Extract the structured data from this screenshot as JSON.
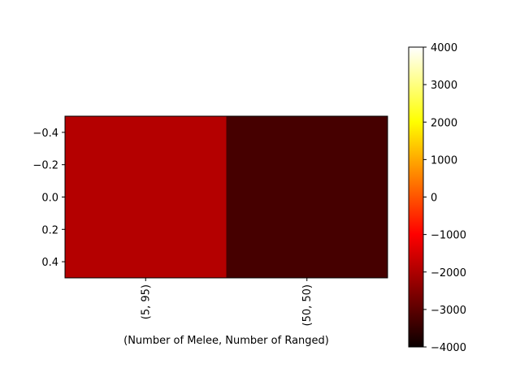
{
  "chart_data": {
    "type": "heatmap",
    "title": "",
    "xlabel": "(Number of Melee, Number of Ranged)",
    "ylabel": "",
    "x_categories": [
      "(5, 95)",
      "(50, 50)"
    ],
    "y_range": [
      0.5,
      -0.5
    ],
    "y_ticks": [
      "−0.4",
      "−0.2",
      "0.0",
      "0.2",
      "0.4"
    ],
    "y_tick_values": [
      -0.4,
      -0.2,
      0.0,
      0.2,
      0.4
    ],
    "values": [
      [
        -2000,
        -3300
      ]
    ],
    "colormap": "hot",
    "colorbar": {
      "vmin": -4000,
      "vmax": 4000,
      "ticks": [
        "4000",
        "3000",
        "2000",
        "1000",
        "0",
        "−1000",
        "−2000",
        "−3000",
        "−4000"
      ],
      "tick_values": [
        4000,
        3000,
        2000,
        1000,
        0,
        -1000,
        -2000,
        -3000,
        -4000
      ]
    }
  }
}
